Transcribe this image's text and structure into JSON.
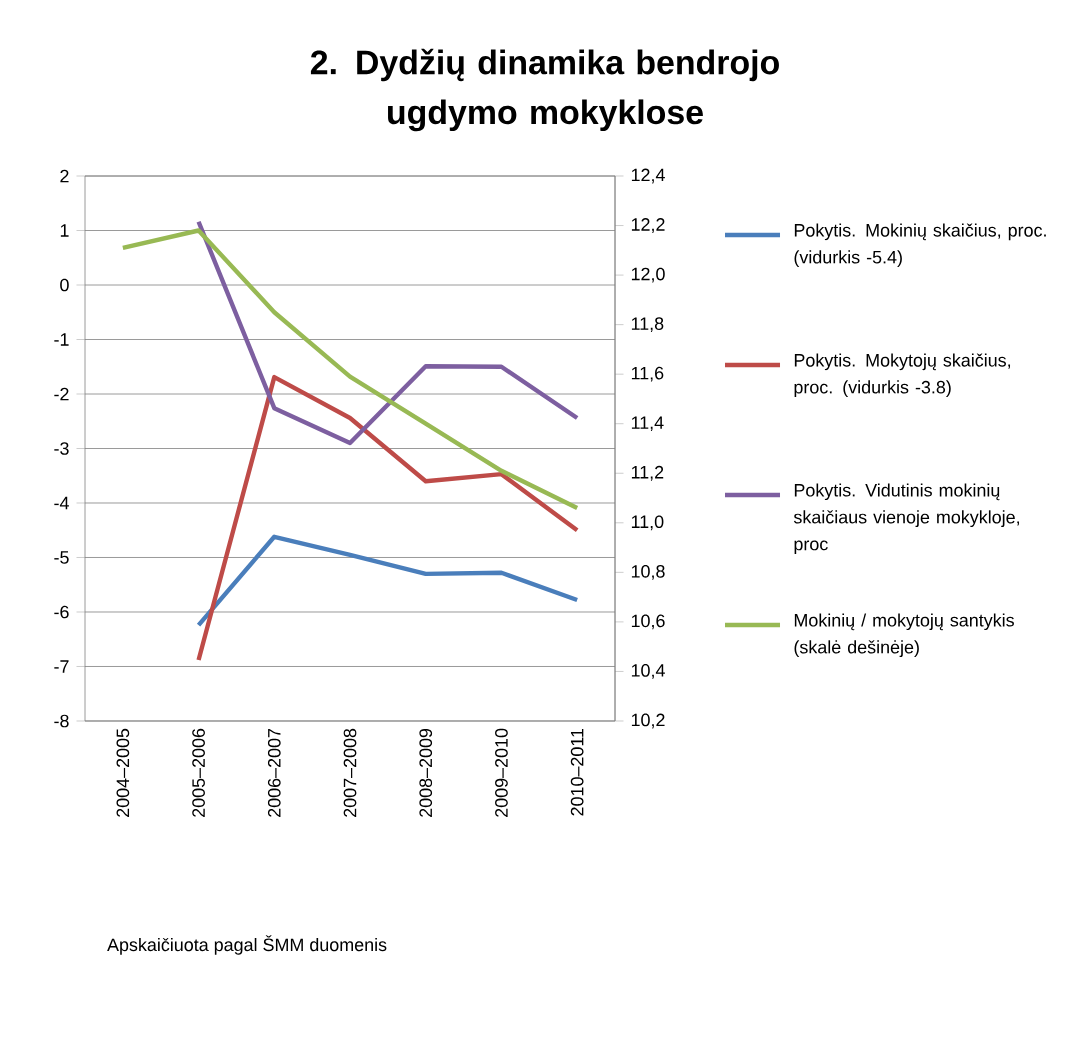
{
  "chart_data": {
    "type": "line",
    "title": "2. Dydžių dinamika bendrojo ugdymo mokyklose",
    "categories": [
      "2004–2005",
      "2005–2006",
      "2006–2007",
      "2007–2008",
      "2008–2009",
      "2009–2010",
      "2010–2011"
    ],
    "series": [
      {
        "name": "Pokytis. Mokinių skaičius, proc. (vidurkis -5.4)",
        "color": "#4a7ebb",
        "values": [
          null,
          -6.24,
          -4.62,
          -4.95,
          -5.3,
          -5.28,
          -5.78
        ]
      },
      {
        "name": "Pokytis. Mokytojų skaičius, proc. (vidurkis -3.8)",
        "color": "#be4b48",
        "values": [
          null,
          -6.88,
          -1.69,
          -2.44,
          -3.6,
          -3.47,
          -4.5
        ]
      },
      {
        "name": "Pokytis. Vidutinis mokinių skaičiaus vienoje mokykloje, proc",
        "color": "#7d5fa0",
        "values": [
          null,
          1.16,
          -2.26,
          -2.9,
          -1.49,
          -1.5,
          -2.44
        ]
      },
      {
        "name": "Mokinių / mokytojų santykis (skalė dešinėje)",
        "color": "#98b954",
        "axis": "y2",
        "values": [
          12.11,
          12.18,
          11.85,
          11.59,
          11.4,
          11.21,
          11.06
        ]
      }
    ],
    "ylim": [
      -8,
      2
    ],
    "yticks": [
      -8,
      -7,
      -6,
      -5,
      -4,
      -3,
      -2,
      -1,
      0,
      1,
      2
    ],
    "y2lim": [
      10.2,
      12.4
    ],
    "y2ticks": [
      {
        "value": 10.2,
        "label": "10,2"
      },
      {
        "value": 10.4,
        "label": "10,4"
      },
      {
        "value": 10.6,
        "label": "10,6"
      },
      {
        "value": 10.8,
        "label": "10,8"
      },
      {
        "value": 11.0,
        "label": "11,0"
      },
      {
        "value": 11.2,
        "label": "11,2"
      },
      {
        "value": 11.4,
        "label": "11,4"
      },
      {
        "value": 11.6,
        "label": "11,6"
      },
      {
        "value": 11.8,
        "label": "11,8"
      },
      {
        "value": 12.0,
        "label": "12,0"
      },
      {
        "value": 12.2,
        "label": "12,2"
      },
      {
        "value": 12.4,
        "label": "12,4"
      }
    ],
    "grid": "y",
    "legend": "right",
    "annotations": [
      "Apskaičiuota pagal ŠMM duomenis"
    ]
  }
}
